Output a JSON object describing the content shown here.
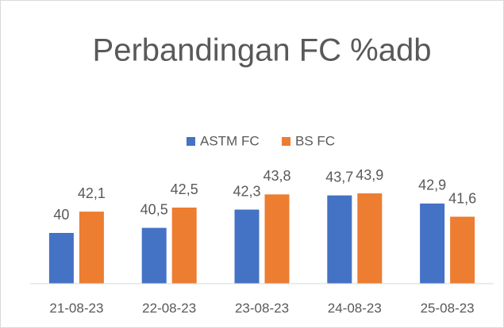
{
  "chart_data": {
    "type": "bar",
    "title": "Perbandingan FC %adb",
    "categories": [
      "21-08-23",
      "22-08-23",
      "23-08-23",
      "24-08-23",
      "25-08-23"
    ],
    "series": [
      {
        "name": "ASTM FC",
        "color": "#4472c4",
        "values": [
          40,
          40.5,
          42.3,
          43.7,
          42.9
        ],
        "value_labels": [
          "40",
          "40,5",
          "42,3",
          "43,7",
          "42,9"
        ]
      },
      {
        "name": "BS FC",
        "color": "#ed7d31",
        "values": [
          42.1,
          42.5,
          43.8,
          43.9,
          41.6
        ],
        "value_labels": [
          "42,1",
          "42,5",
          "43,8",
          "43,9",
          "41,6"
        ]
      }
    ],
    "ylim": [
      35,
      45
    ],
    "legend": "top"
  }
}
